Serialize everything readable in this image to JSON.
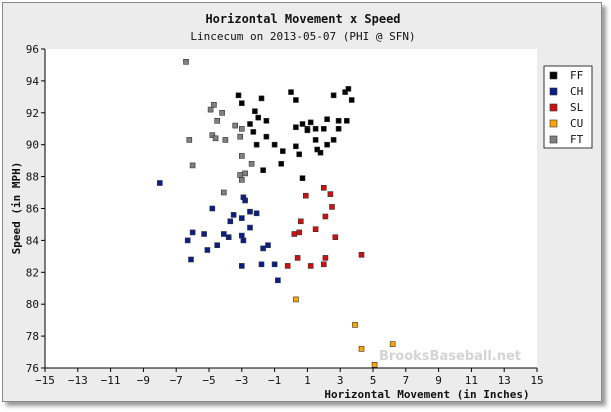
{
  "chart_data": {
    "type": "scatter",
    "title": "Horizontal Movement x Speed",
    "subtitle": "Lincecum on 2013-05-07 (PHI @ SFN)",
    "xlabel": "Horizontal Movement (in Inches)",
    "ylabel": "Speed (in MPH)",
    "xlim": [
      -15,
      15
    ],
    "ylim": [
      76,
      96
    ],
    "xticks": [
      -15,
      -13,
      -11,
      -9,
      -7,
      -5,
      -3,
      -1,
      1,
      3,
      5,
      7,
      9,
      11,
      13,
      15
    ],
    "yticks": [
      76,
      78,
      80,
      82,
      84,
      86,
      88,
      90,
      92,
      94,
      96
    ],
    "grid": false,
    "legend_position": "top-right",
    "watermark": "BrooksBaseball.net",
    "series": [
      {
        "name": "FF",
        "color": "#000000",
        "points": [
          [
            -3.2,
            93.1
          ],
          [
            -3.0,
            92.6
          ],
          [
            -1.8,
            92.9
          ],
          [
            -2.2,
            92.1
          ],
          [
            -2.0,
            91.7
          ],
          [
            -2.5,
            91.3
          ],
          [
            -1.5,
            91.5
          ],
          [
            -2.3,
            90.8
          ],
          [
            -1.5,
            90.5
          ],
          [
            -2.1,
            90.0
          ],
          [
            -1.0,
            90.0
          ],
          [
            -0.5,
            89.6
          ],
          [
            -0.6,
            88.8
          ],
          [
            -1.7,
            88.4
          ],
          [
            0.0,
            93.3
          ],
          [
            0.3,
            92.8
          ],
          [
            2.6,
            93.1
          ],
          [
            3.3,
            93.3
          ],
          [
            3.5,
            93.5
          ],
          [
            3.7,
            92.8
          ],
          [
            0.3,
            91.1
          ],
          [
            0.7,
            91.3
          ],
          [
            1.0,
            91.0
          ],
          [
            1.2,
            91.4
          ],
          [
            1.5,
            91.0
          ],
          [
            2.0,
            91.0
          ],
          [
            2.2,
            91.6
          ],
          [
            2.9,
            91.5
          ],
          [
            3.4,
            91.5
          ],
          [
            2.9,
            91.0
          ],
          [
            1.0,
            90.9
          ],
          [
            0.3,
            89.9
          ],
          [
            0.5,
            89.4
          ],
          [
            1.5,
            90.3
          ],
          [
            1.6,
            89.7
          ],
          [
            1.8,
            89.5
          ],
          [
            2.2,
            90.0
          ],
          [
            2.6,
            90.3
          ],
          [
            0.7,
            87.9
          ]
        ]
      },
      {
        "name": "CH",
        "color": "#0a1e8a",
        "points": [
          [
            -8.0,
            87.6
          ],
          [
            -4.8,
            86.0
          ],
          [
            -6.3,
            84.0
          ],
          [
            -6.0,
            84.5
          ],
          [
            -5.3,
            84.4
          ],
          [
            -5.1,
            83.4
          ],
          [
            -4.5,
            83.7
          ],
          [
            -6.1,
            82.8
          ],
          [
            -3.7,
            85.2
          ],
          [
            -3.5,
            85.6
          ],
          [
            -3.0,
            85.4
          ],
          [
            -2.8,
            86.5
          ],
          [
            -2.9,
            86.7
          ],
          [
            -2.5,
            85.8
          ],
          [
            -2.1,
            85.7
          ],
          [
            -2.5,
            84.8
          ],
          [
            -3.0,
            84.3
          ],
          [
            -3.8,
            84.2
          ],
          [
            -4.1,
            84.4
          ],
          [
            -2.9,
            84.0
          ],
          [
            -1.7,
            83.5
          ],
          [
            -1.4,
            83.7
          ],
          [
            -3.0,
            82.4
          ],
          [
            -1.8,
            82.5
          ],
          [
            -1.0,
            82.5
          ],
          [
            -0.8,
            81.5
          ]
        ]
      },
      {
        "name": "SL",
        "color": "#d01010",
        "points": [
          [
            2.0,
            87.3
          ],
          [
            2.4,
            86.9
          ],
          [
            0.9,
            86.8
          ],
          [
            2.5,
            86.1
          ],
          [
            2.1,
            85.5
          ],
          [
            0.6,
            85.2
          ],
          [
            0.2,
            84.4
          ],
          [
            0.5,
            84.5
          ],
          [
            1.5,
            84.7
          ],
          [
            2.7,
            84.2
          ],
          [
            4.3,
            83.1
          ],
          [
            0.4,
            82.9
          ],
          [
            2.1,
            82.9
          ],
          [
            -0.2,
            82.4
          ],
          [
            1.2,
            82.4
          ],
          [
            2.0,
            82.5
          ]
        ]
      },
      {
        "name": "CU",
        "color": "#ffa500",
        "points": [
          [
            0.3,
            80.3
          ],
          [
            3.9,
            78.7
          ],
          [
            4.3,
            77.2
          ],
          [
            6.2,
            77.5
          ],
          [
            5.1,
            76.2
          ]
        ]
      },
      {
        "name": "FT",
        "color": "#808080",
        "points": [
          [
            -6.4,
            95.2
          ],
          [
            -4.7,
            92.5
          ],
          [
            -4.9,
            92.2
          ],
          [
            -4.5,
            91.5
          ],
          [
            -4.2,
            92.0
          ],
          [
            -3.0,
            91.0
          ],
          [
            -3.4,
            91.2
          ],
          [
            -4.8,
            90.6
          ],
          [
            -4.6,
            90.4
          ],
          [
            -6.2,
            90.3
          ],
          [
            -4.0,
            90.3
          ],
          [
            -3.1,
            90.5
          ],
          [
            -3.0,
            89.3
          ],
          [
            -2.4,
            88.8
          ],
          [
            -6.0,
            88.7
          ],
          [
            -3.1,
            88.1
          ],
          [
            -3.0,
            87.8
          ],
          [
            -2.8,
            88.2
          ],
          [
            -4.1,
            87.0
          ]
        ]
      }
    ]
  }
}
